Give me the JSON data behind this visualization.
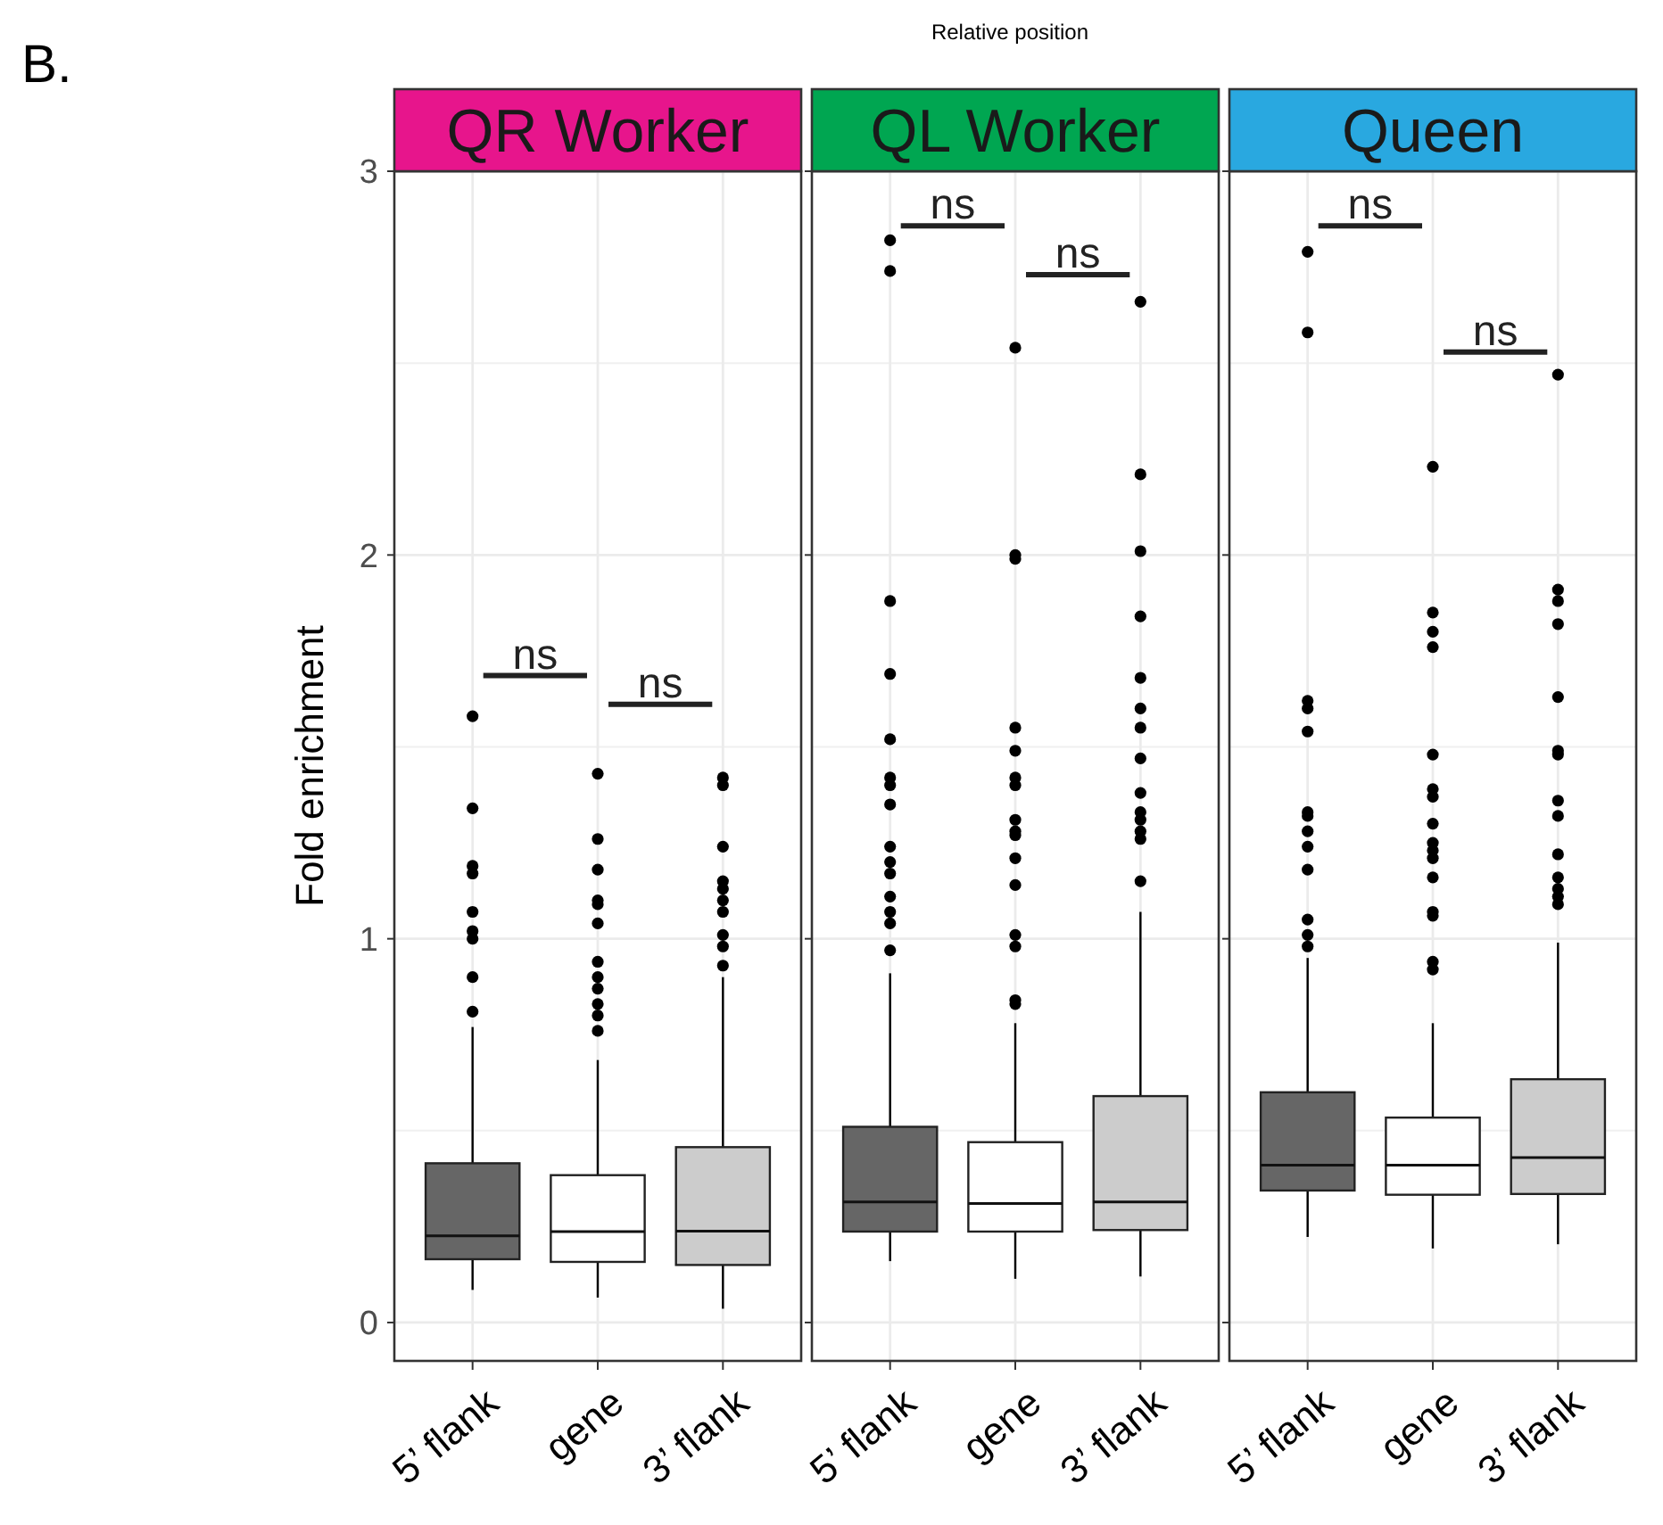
{
  "chart_data": [
    {
      "type": "box",
      "title": "QR Worker",
      "ylabel": "Fold enrichment",
      "categories": [
        "5’ flank",
        "gene",
        "3’ flank"
      ],
      "colors": [
        "#666666",
        "#ffffff",
        "#cccccc"
      ],
      "ylim": [
        -0.1,
        3
      ],
      "yticks": [
        0,
        1,
        2,
        3
      ],
      "grid": true,
      "boxes": [
        {
          "low": 0.085,
          "q1": 0.165,
          "median": 0.226,
          "q3": 0.415,
          "high": 0.77,
          "outliers": [
            1.58,
            1.34,
            1.19,
            1.17,
            1.07,
            1.02,
            1.0,
            0.9,
            0.81
          ]
        },
        {
          "low": 0.065,
          "q1": 0.158,
          "median": 0.237,
          "q3": 0.384,
          "high": 0.684,
          "outliers": [
            1.43,
            1.26,
            1.18,
            1.1,
            1.09,
            1.04,
            0.94,
            0.9,
            0.87,
            0.83,
            0.8,
            0.76
          ]
        },
        {
          "low": 0.036,
          "q1": 0.15,
          "median": 0.238,
          "q3": 0.457,
          "high": 0.9,
          "outliers": [
            1.42,
            1.4,
            1.24,
            1.15,
            1.13,
            1.1,
            1.07,
            1.01,
            0.98,
            0.93
          ]
        }
      ],
      "annotations": [
        "Relative position",
        "B.",
        "ns",
        "ns"
      ]
    },
    {
      "type": "box",
      "title": "QL Worker",
      "categories": [
        "5’ flank",
        "gene",
        "3’ flank"
      ],
      "colors": [
        "#666666",
        "#ffffff",
        "#cccccc"
      ],
      "ylim": [
        -0.1,
        3
      ],
      "yticks": [
        0,
        1,
        2,
        3
      ],
      "grid": true,
      "tick_labels": "x",
      "boxes": [
        {
          "low": 0.16,
          "q1": 0.237,
          "median": 0.314,
          "q3": 0.51,
          "high": 0.91,
          "outliers": [
            2.82,
            2.74,
            1.88,
            1.69,
            1.52,
            1.42,
            1.4,
            1.35,
            1.24,
            1.2,
            1.17,
            1.11,
            1.07,
            1.04,
            0.97
          ]
        },
        {
          "low": 0.114,
          "q1": 0.237,
          "median": 0.31,
          "q3": 0.47,
          "high": 0.78,
          "outliers": [
            2.54,
            2.0,
            1.99,
            1.55,
            1.49,
            1.42,
            1.4,
            1.31,
            1.28,
            1.27,
            1.21,
            1.14,
            1.01,
            0.98,
            0.84,
            0.83
          ]
        },
        {
          "low": 0.12,
          "q1": 0.241,
          "median": 0.314,
          "q3": 0.59,
          "high": 1.07,
          "outliers": [
            2.66,
            2.21,
            2.01,
            1.84,
            1.68,
            1.6,
            1.55,
            1.47,
            1.38,
            1.33,
            1.31,
            1.28,
            1.26,
            1.15
          ]
        }
      ],
      "annotations": [
        "ns",
        "ns"
      ]
    },
    {
      "type": "box",
      "title": "Queen",
      "categories": [
        "5’ flank",
        "gene",
        "3’ flank"
      ],
      "colors": [
        "#666666",
        "#ffffff",
        "#cccccc"
      ],
      "ylim": [
        -0.1,
        3
      ],
      "yticks": [
        0,
        1,
        2,
        3
      ],
      "grid": true,
      "tick_labels": "x",
      "boxes": [
        {
          "low": 0.223,
          "q1": 0.344,
          "median": 0.41,
          "q3": 0.6,
          "high": 0.95,
          "outliers": [
            2.79,
            2.58,
            1.62,
            1.6,
            1.54,
            1.33,
            1.32,
            1.28,
            1.24,
            1.18,
            1.05,
            1.01,
            0.98
          ]
        },
        {
          "low": 0.193,
          "q1": 0.333,
          "median": 0.41,
          "q3": 0.534,
          "high": 0.78,
          "outliers": [
            2.23,
            1.85,
            1.8,
            1.76,
            1.48,
            1.39,
            1.37,
            1.3,
            1.25,
            1.23,
            1.21,
            1.16,
            1.07,
            1.06,
            0.94,
            0.92
          ]
        },
        {
          "low": 0.204,
          "q1": 0.335,
          "median": 0.43,
          "q3": 0.634,
          "high": 0.99,
          "outliers": [
            2.47,
            1.91,
            1.88,
            1.82,
            1.63,
            1.49,
            1.48,
            1.36,
            1.32,
            1.22,
            1.16,
            1.13,
            1.11,
            1.09
          ]
        }
      ],
      "annotations": [
        "ns",
        "ns"
      ]
    }
  ]
}
